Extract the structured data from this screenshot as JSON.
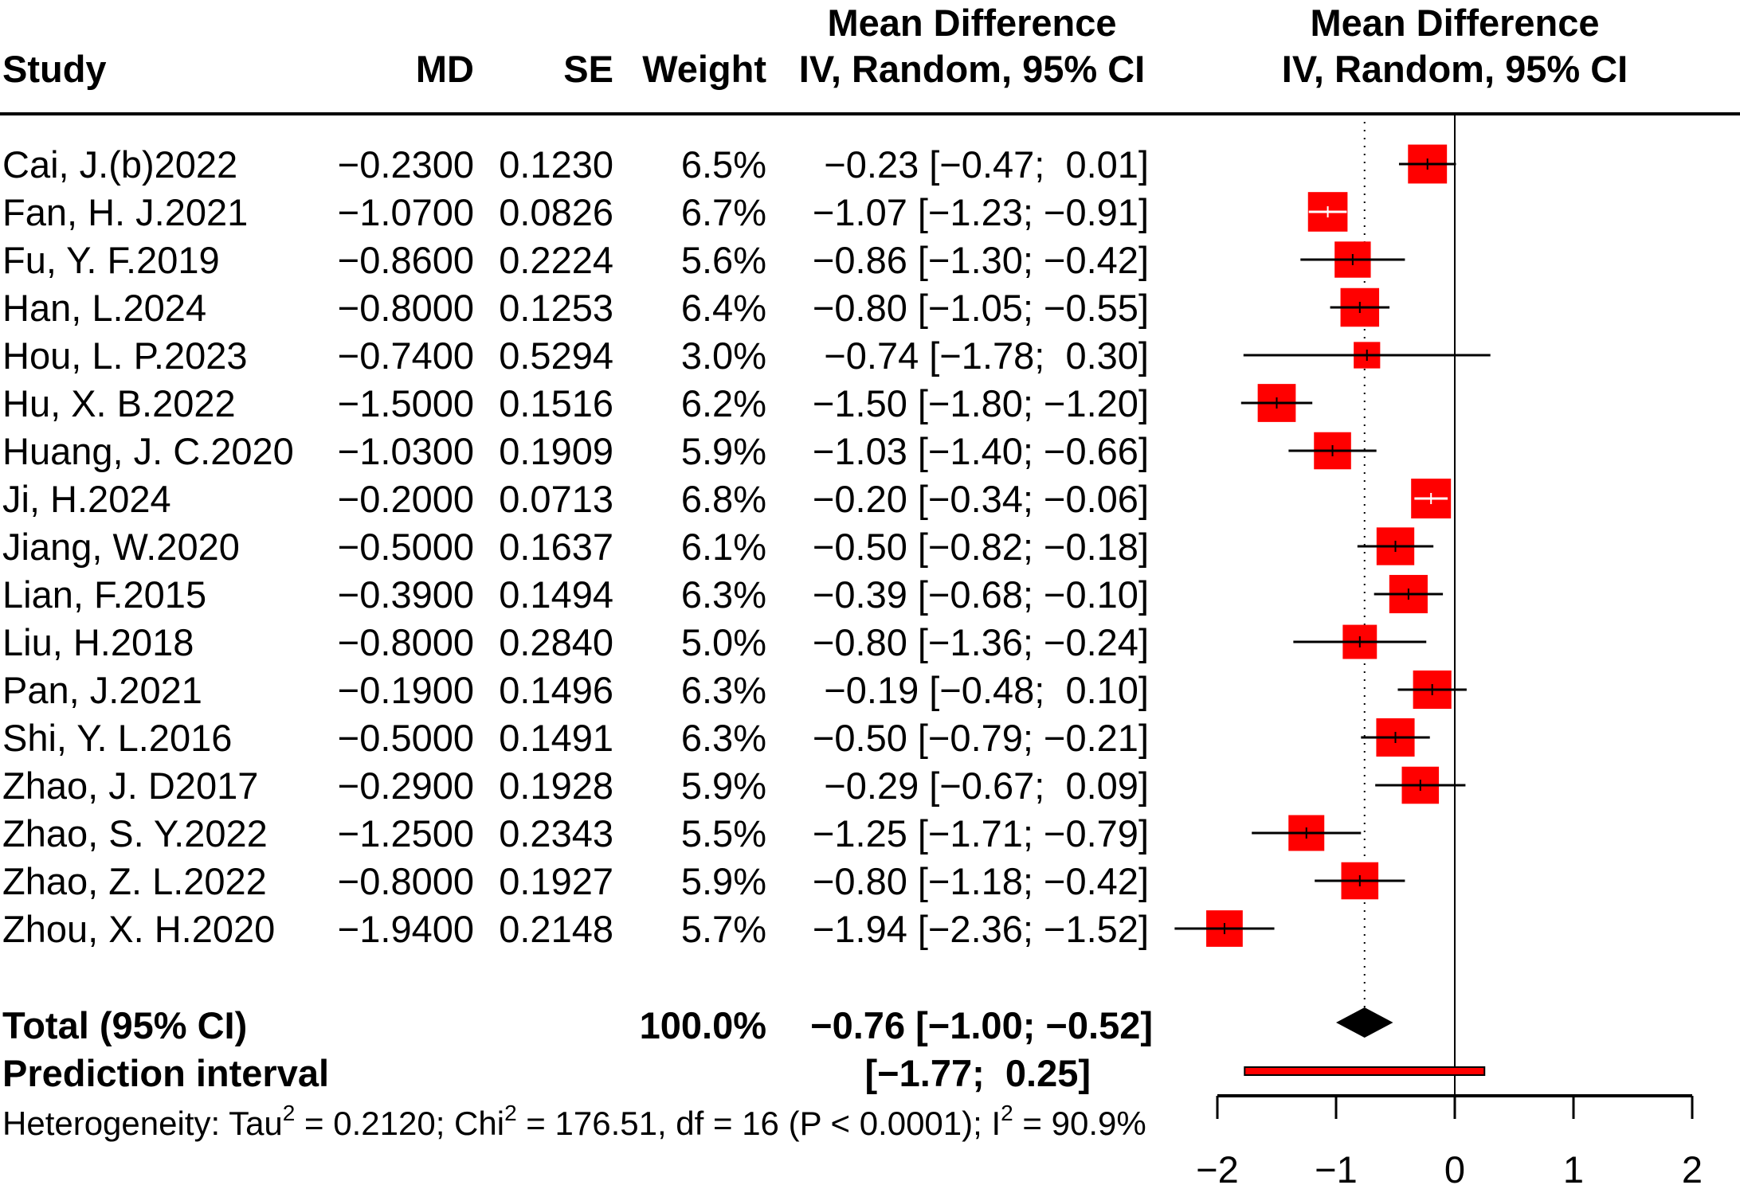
{
  "chart_data": {
    "type": "forest",
    "headers": {
      "study": "Study",
      "md": "MD",
      "se": "SE",
      "weight": "Weight",
      "ci_top": "Mean Difference",
      "ci_bottom": "IV, Random, 95% CI",
      "plot_top": "Mean Difference",
      "plot_bottom": "IV, Random, 95% CI"
    },
    "studies": [
      {
        "study": "Cai, J.(b)2022",
        "md": "−0.2300",
        "se": "0.1230",
        "weight": "6.5%",
        "ci_text": " −0.23 [−0.47;  0.01]",
        "est": -0.23,
        "lo": -0.47,
        "hi": 0.01,
        "w": 6.5
      },
      {
        "study": "Fan, H. J.2021",
        "md": "−1.0700",
        "se": "0.0826",
        "weight": "6.7%",
        "ci_text": "−1.07 [−1.23; −0.91]",
        "est": -1.07,
        "lo": -1.23,
        "hi": -0.91,
        "w": 6.7
      },
      {
        "study": "Fu, Y. F.2019",
        "md": "−0.8600",
        "se": "0.2224",
        "weight": "5.6%",
        "ci_text": "−0.86 [−1.30; −0.42]",
        "est": -0.86,
        "lo": -1.3,
        "hi": -0.42,
        "w": 5.6
      },
      {
        "study": "Han, L.2024",
        "md": "−0.8000",
        "se": "0.1253",
        "weight": "6.4%",
        "ci_text": "−0.80 [−1.05; −0.55]",
        "est": -0.8,
        "lo": -1.05,
        "hi": -0.55,
        "w": 6.4
      },
      {
        "study": "Hou, L. P.2023",
        "md": "−0.7400",
        "se": "0.5294",
        "weight": "3.0%",
        "ci_text": " −0.74 [−1.78;  0.30]",
        "est": -0.74,
        "lo": -1.78,
        "hi": 0.3,
        "w": 3.0
      },
      {
        "study": "Hu, X. B.2022",
        "md": "−1.5000",
        "se": "0.1516",
        "weight": "6.2%",
        "ci_text": "−1.50 [−1.80; −1.20]",
        "est": -1.5,
        "lo": -1.8,
        "hi": -1.2,
        "w": 6.2
      },
      {
        "study": "Huang, J. C.2020",
        "md": "−1.0300",
        "se": "0.1909",
        "weight": "5.9%",
        "ci_text": "−1.03 [−1.40; −0.66]",
        "est": -1.03,
        "lo": -1.4,
        "hi": -0.66,
        "w": 5.9
      },
      {
        "study": "Ji, H.2024",
        "md": "−0.2000",
        "se": "0.0713",
        "weight": "6.8%",
        "ci_text": "−0.20 [−0.34; −0.06]",
        "est": -0.2,
        "lo": -0.34,
        "hi": -0.06,
        "w": 6.8
      },
      {
        "study": "Jiang, W.2020",
        "md": "−0.5000",
        "se": "0.1637",
        "weight": "6.1%",
        "ci_text": "−0.50 [−0.82; −0.18]",
        "est": -0.5,
        "lo": -0.82,
        "hi": -0.18,
        "w": 6.1
      },
      {
        "study": "Lian, F.2015",
        "md": "−0.3900",
        "se": "0.1494",
        "weight": "6.3%",
        "ci_text": "−0.39 [−0.68; −0.10]",
        "est": -0.39,
        "lo": -0.68,
        "hi": -0.1,
        "w": 6.3
      },
      {
        "study": "Liu, H.2018",
        "md": "−0.8000",
        "se": "0.2840",
        "weight": "5.0%",
        "ci_text": "−0.80 [−1.36; −0.24]",
        "est": -0.8,
        "lo": -1.36,
        "hi": -0.24,
        "w": 5.0
      },
      {
        "study": "Pan, J.2021",
        "md": "−0.1900",
        "se": "0.1496",
        "weight": "6.3%",
        "ci_text": " −0.19 [−0.48;  0.10]",
        "est": -0.19,
        "lo": -0.48,
        "hi": 0.1,
        "w": 6.3
      },
      {
        "study": "Shi, Y. L.2016",
        "md": "−0.5000",
        "se": "0.1491",
        "weight": "6.3%",
        "ci_text": "−0.50 [−0.79; −0.21]",
        "est": -0.5,
        "lo": -0.79,
        "hi": -0.21,
        "w": 6.3
      },
      {
        "study": "Zhao, J. D2017",
        "md": "−0.2900",
        "se": "0.1928",
        "weight": "5.9%",
        "ci_text": " −0.29 [−0.67;  0.09]",
        "est": -0.29,
        "lo": -0.67,
        "hi": 0.09,
        "w": 5.9
      },
      {
        "study": "Zhao, S. Y.2022",
        "md": "−1.2500",
        "se": "0.2343",
        "weight": "5.5%",
        "ci_text": "−1.25 [−1.71; −0.79]",
        "est": -1.25,
        "lo": -1.71,
        "hi": -0.79,
        "w": 5.5
      },
      {
        "study": "Zhao, Z. L.2022",
        "md": "−0.8000",
        "se": "0.1927",
        "weight": "5.9%",
        "ci_text": "−0.80 [−1.18; −0.42]",
        "est": -0.8,
        "lo": -1.18,
        "hi": -0.42,
        "w": 5.9
      },
      {
        "study": "Zhou, X. H.2020",
        "md": "−1.9400",
        "se": "0.2148",
        "weight": "5.7%",
        "ci_text": "−1.94 [−2.36; −1.52]",
        "est": -1.94,
        "lo": -2.36,
        "hi": -1.52,
        "w": 5.7
      }
    ],
    "total": {
      "label": "Total (95% CI)",
      "weight": "100.0%",
      "ci_text": "−0.76 [−1.00; −0.52]",
      "est": -0.76,
      "lo": -1.0,
      "hi": -0.52
    },
    "prediction": {
      "label": "Prediction interval",
      "ci_text": "[−1.77;  0.25]",
      "lo": -1.77,
      "hi": 0.25
    },
    "heterogeneity": {
      "p1": "Heterogeneity: Tau",
      "p2": " = 0.2120; Chi",
      "p3": " = 176.51, df = 16 (P < 0.0001); I",
      "p4": " = 90.9%",
      "sup": "2"
    },
    "xaxis": {
      "range": [
        -2,
        2
      ],
      "ticks": [
        -2,
        -1,
        0,
        1,
        2
      ],
      "tick_labels": [
        "−2",
        "−1",
        "0",
        "1",
        "2"
      ]
    },
    "colors": {
      "square": "#ff0000",
      "diamond": "#000000",
      "prediction": "#ff0000"
    }
  }
}
